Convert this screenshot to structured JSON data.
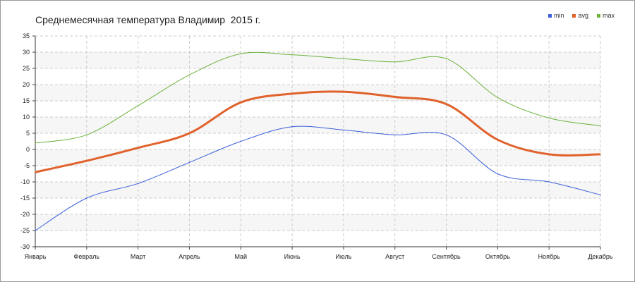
{
  "chart_data": {
    "type": "line",
    "title": "Среднемесячная температура Владимир  2015 г.",
    "categories": [
      "Январь",
      "Февраль",
      "Март",
      "Апрель",
      "Май",
      "Июнь",
      "Июль",
      "Август",
      "Сентябрь",
      "Октябрь",
      "Ноябрь",
      "Декабрь"
    ],
    "y_ticks": [
      "35",
      "30",
      "25",
      "20",
      "15",
      "10",
      "5",
      "0",
      "-5",
      "-10",
      "-15",
      "-20",
      "-25",
      "-30"
    ],
    "ylim": [
      -30,
      35
    ],
    "grid": true,
    "legend_position": "top-right",
    "series": [
      {
        "name": "min",
        "color": "#3a5fd9",
        "values": [
          -25,
          -15,
          -10.5,
          -4,
          2.5,
          7,
          6,
          4.5,
          4.5,
          -7.5,
          -10,
          -14
        ]
      },
      {
        "name": "avg",
        "color": "#e0622c",
        "values": [
          -7,
          -3.5,
          0.5,
          5,
          14.5,
          17.2,
          17.8,
          16.2,
          14,
          3,
          -1.5,
          -1.5
        ]
      },
      {
        "name": "max",
        "color": "#6bb33a",
        "values": [
          2,
          4.5,
          13.5,
          23,
          29.5,
          29.2,
          28,
          27,
          28,
          16,
          9.7,
          7.3
        ]
      }
    ]
  }
}
